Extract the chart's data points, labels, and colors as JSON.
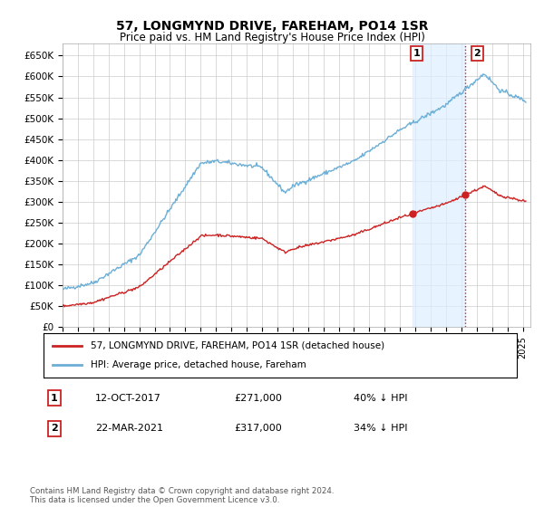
{
  "title": "57, LONGMYND DRIVE, FAREHAM, PO14 1SR",
  "subtitle": "Price paid vs. HM Land Registry's House Price Index (HPI)",
  "ylabel_ticks": [
    "£0",
    "£50K",
    "£100K",
    "£150K",
    "£200K",
    "£250K",
    "£300K",
    "£350K",
    "£400K",
    "£450K",
    "£500K",
    "£550K",
    "£600K",
    "£650K"
  ],
  "ytick_values": [
    0,
    50000,
    100000,
    150000,
    200000,
    250000,
    300000,
    350000,
    400000,
    450000,
    500000,
    550000,
    600000,
    650000
  ],
  "ylim": [
    0,
    680000
  ],
  "xlim_start": 1995.0,
  "xlim_end": 2025.5,
  "hpi_color": "#6baed6",
  "price_color": "#cc2222",
  "vline_color": "#cc2222",
  "shade_color": "#ddeeff",
  "transaction1_x": 2017.79,
  "transaction1_y": 271000,
  "transaction1_label": "1",
  "transaction2_x": 2021.23,
  "transaction2_y": 317000,
  "transaction2_label": "2",
  "legend_line1": "57, LONGMYND DRIVE, FAREHAM, PO14 1SR (detached house)",
  "legend_line2": "HPI: Average price, detached house, Fareham",
  "ann1_num": "1",
  "ann1_date": "12-OCT-2017",
  "ann1_price": "£271,000",
  "ann1_hpi": "40% ↓ HPI",
  "ann2_num": "2",
  "ann2_date": "22-MAR-2021",
  "ann2_price": "£317,000",
  "ann2_hpi": "34% ↓ HPI",
  "footer": "Contains HM Land Registry data © Crown copyright and database right 2024.\nThis data is licensed under the Open Government Licence v3.0.",
  "background_color": "#ffffff",
  "grid_color": "#cccccc"
}
